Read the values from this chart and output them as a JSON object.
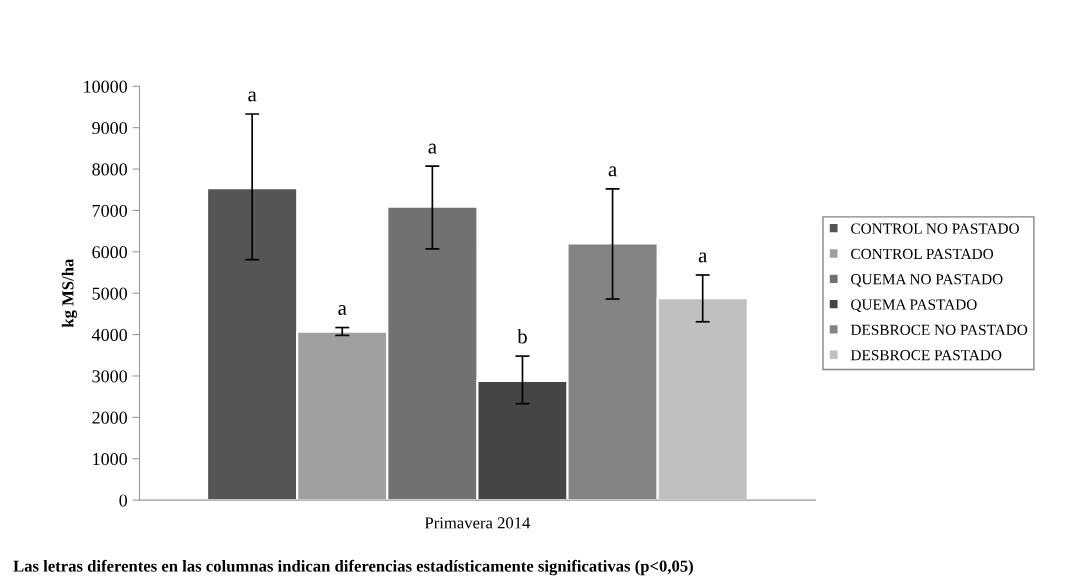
{
  "chart_data": {
    "type": "bar",
    "ylabel": "kg MS/ha",
    "categories": [
      "Primavera 2014"
    ],
    "series": [
      {
        "name": "CONTROL NO PASTADO",
        "color": "#555555",
        "values": [
          7540
        ],
        "errors": [
          [
            5810,
            9330
          ]
        ]
      },
      {
        "name": "CONTROL PASTADO",
        "color": "#a0a0a0",
        "values": [
          4070
        ],
        "errors": [
          [
            3980,
            4170
          ]
        ]
      },
      {
        "name": "QUEMA NO PASTADO",
        "color": "#717171",
        "values": [
          7090
        ],
        "errors": [
          [
            6070,
            8070
          ]
        ]
      },
      {
        "name": "QUEMA PASTADO",
        "color": "#454545",
        "values": [
          2880
        ],
        "errors": [
          [
            2330,
            3480
          ]
        ]
      },
      {
        "name": "DESBROCE NO PASTADO",
        "color": "#838383",
        "values": [
          6200
        ],
        "errors": [
          [
            4860,
            7520
          ]
        ]
      },
      {
        "name": "DESBROCE PASTADO",
        "color": "#c0c0c0",
        "values": [
          4880
        ],
        "errors": [
          [
            4310,
            5440
          ]
        ]
      }
    ],
    "ylim": [
      0,
      10000
    ],
    "yticks": [
      0,
      1000,
      2000,
      3000,
      4000,
      5000,
      6000,
      7000,
      8000,
      9000,
      10000
    ],
    "grid": false,
    "legend": "right",
    "annotations": [
      "a",
      "a",
      "a",
      "b",
      "a",
      "a",
      "Las letras diferentes en las columnas indican diferencias estadísticamente significativas (p<0,05)"
    ]
  }
}
